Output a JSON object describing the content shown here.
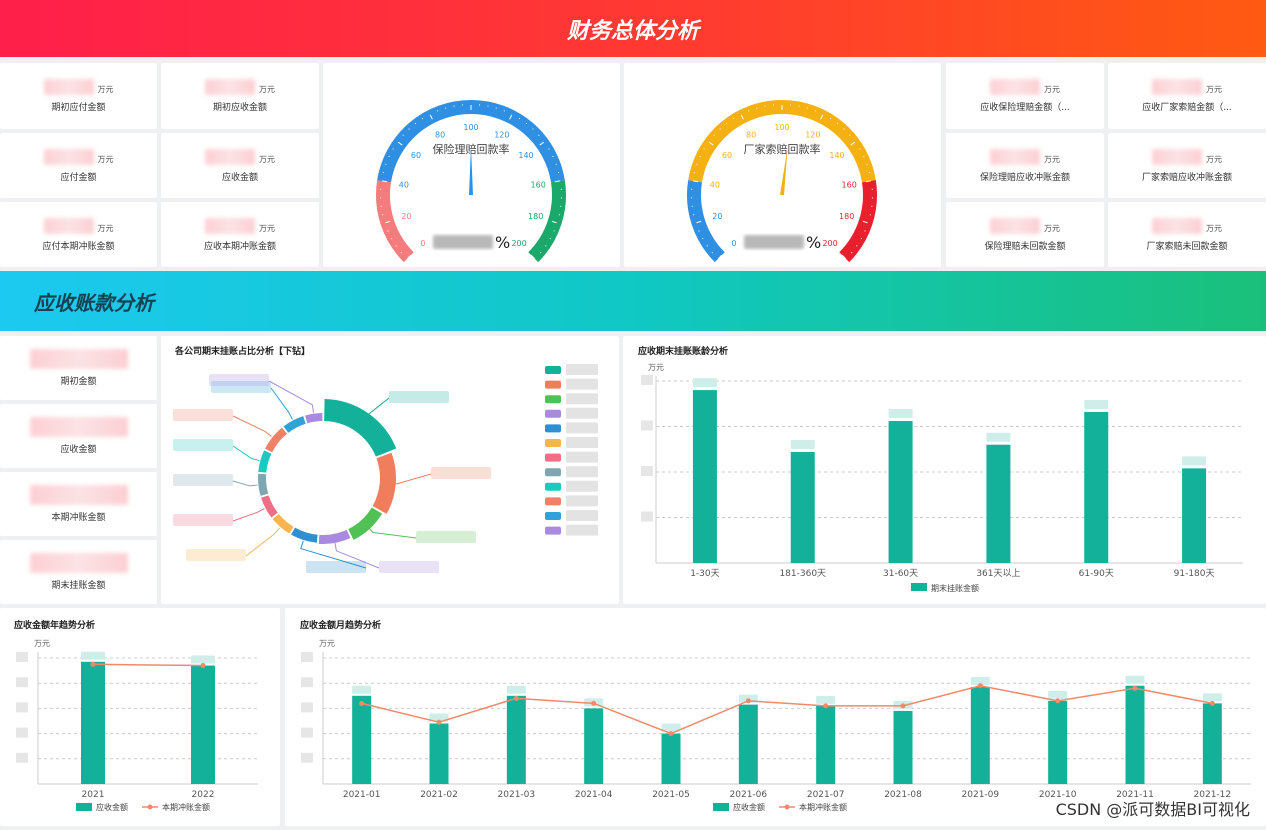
{
  "header": {
    "title": "财务总体分析"
  },
  "section2": {
    "title": "应收账款分析"
  },
  "kpi_left": [
    {
      "label": "期初应付金额",
      "unit": "万元"
    },
    {
      "label": "期初应收金额",
      "unit": "万元"
    },
    {
      "label": "应付金额",
      "unit": "万元"
    },
    {
      "label": "应收金额",
      "unit": "万元"
    },
    {
      "label": "应付本期冲账金额",
      "unit": "万元"
    },
    {
      "label": "应收本期冲账金额",
      "unit": "万元"
    }
  ],
  "kpi_right": [
    {
      "label": "应收保险理赔金额（...",
      "unit": "万元"
    },
    {
      "label": "应收厂家索赔金额（...",
      "unit": "万元"
    },
    {
      "label": "保险理赔应收冲账金额",
      "unit": "万元"
    },
    {
      "label": "厂家索赔应收冲账金额",
      "unit": "万元"
    },
    {
      "label": "保险理赔未回款金额",
      "unit": "万元"
    },
    {
      "label": "厂家索赔未回款金额",
      "unit": "万元"
    }
  ],
  "gauges": [
    {
      "title": "保险理赔回款率",
      "unit": "%",
      "ticks": [
        "0",
        "20",
        "40",
        "60",
        "80",
        "100",
        "120",
        "140",
        "160",
        "180",
        "200"
      ],
      "value": 100
    },
    {
      "title": "厂家索赔回款率",
      "unit": "%",
      "ticks": [
        "0",
        "20",
        "40",
        "60",
        "80",
        "100",
        "120",
        "140",
        "160",
        "180",
        "200"
      ],
      "value": 105
    }
  ],
  "ar_kpis": [
    {
      "label": "期初金额"
    },
    {
      "label": "应收金额"
    },
    {
      "label": "本期冲账金额"
    },
    {
      "label": "期末挂账金额"
    }
  ],
  "donut": {
    "title": "各公司期末挂账占比分析【下钻】"
  },
  "colors": {
    "teal": "#13b19a",
    "orange": "#f07e5d",
    "green": "#52c155",
    "purple": "#a88be0",
    "blue": "#2f8fd1",
    "yellow": "#f7b54f",
    "pink": "#ee6f86",
    "gray": "#7fa7b2",
    "cyan": "#1ec8c0",
    "salmon": "#f08066",
    "lblue": "#30a2d8"
  },
  "aging_chart": {
    "title": "应收期末挂账账龄分析",
    "unit_label": "万元",
    "legend": "期末挂账金额",
    "chart_data": {
      "type": "bar",
      "categories": [
        "1-30天",
        "181-360天",
        "31-60天",
        "361天以上",
        "61-90天",
        "91-180天"
      ],
      "values": [
        95,
        61,
        78,
        65,
        83,
        52
      ],
      "ylim": [
        0,
        100
      ]
    }
  },
  "year_chart": {
    "title": "应收金额年趋势分析",
    "unit_label": "万元",
    "legend": [
      "应收金额",
      "本期冲账金额"
    ],
    "chart_data": {
      "type": "bar",
      "categories": [
        "2021",
        "2022"
      ],
      "series": [
        {
          "name": "应收金额",
          "values": [
            97,
            94
          ]
        },
        {
          "name": "本期冲账金额",
          "values": [
            95,
            94
          ]
        }
      ],
      "ylim": [
        0,
        100
      ]
    }
  },
  "month_chart": {
    "title": "应收金额月趋势分析",
    "unit_label": "万元",
    "legend": [
      "应收金额",
      "本期冲账金额"
    ],
    "chart_data": {
      "type": "bar",
      "categories": [
        "2021-01",
        "2021-02",
        "2021-03",
        "2021-04",
        "2021-05",
        "2021-06",
        "2021-07",
        "2021-08",
        "2021-09",
        "2021-10",
        "2021-11",
        "2021-12"
      ],
      "series": [
        {
          "name": "应收金额",
          "values": [
            70,
            48,
            70,
            60,
            40,
            63,
            62,
            58,
            77,
            66,
            78,
            64
          ]
        },
        {
          "name": "本期冲账金额",
          "values": [
            64,
            49,
            68,
            64,
            40,
            66,
            62,
            62,
            78,
            66,
            76,
            64
          ]
        }
      ],
      "ylim": [
        0,
        100
      ]
    }
  },
  "watermark": "CSDN @派可数据BI可视化"
}
